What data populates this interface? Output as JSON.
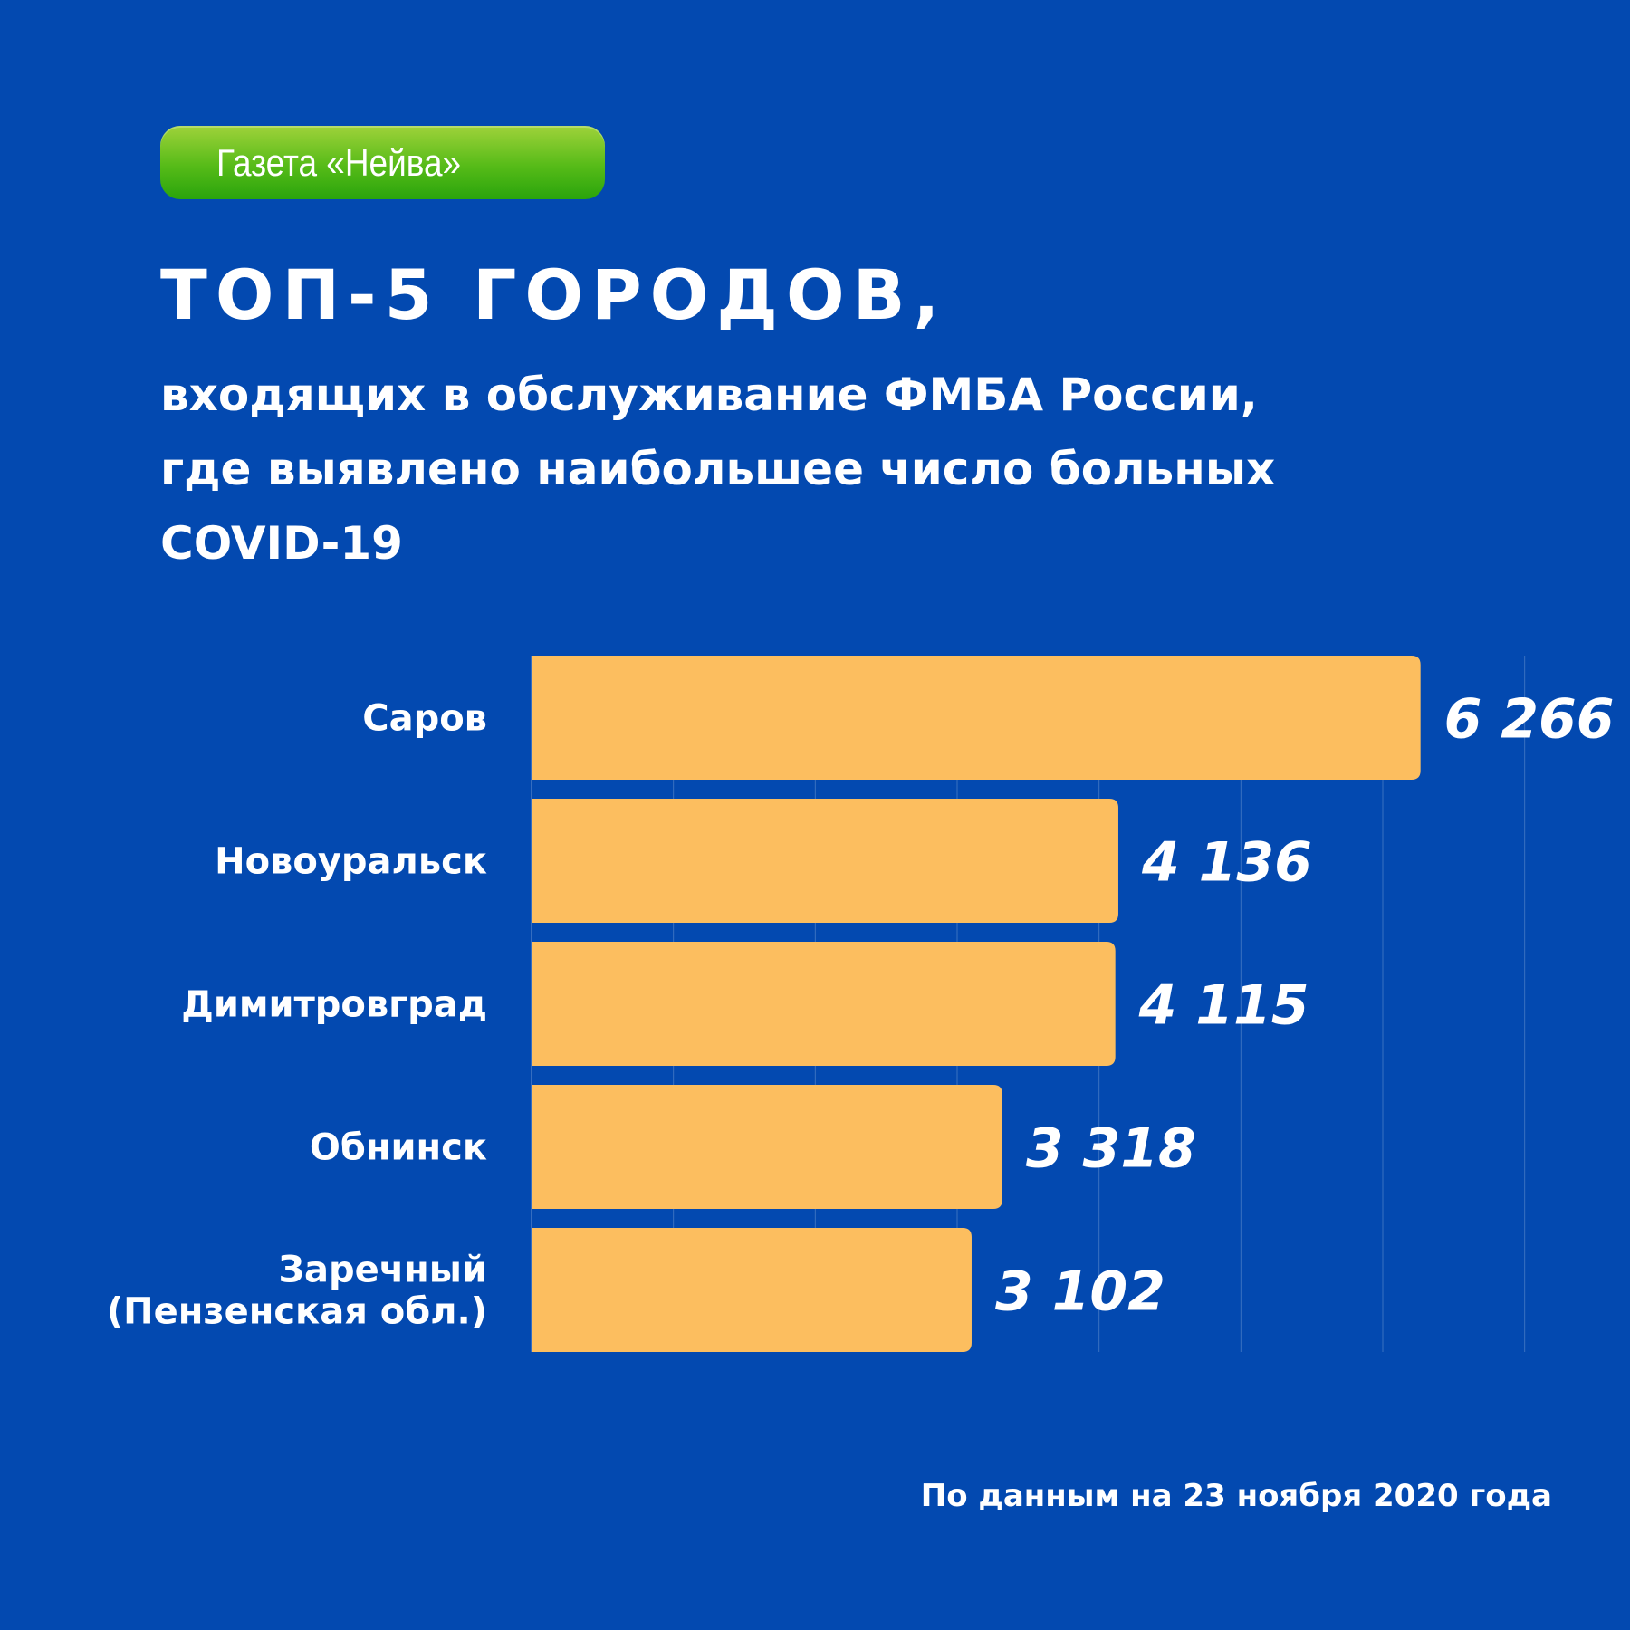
{
  "badge": {
    "text": "Газета «Нейва»"
  },
  "title": "ТОП-5 ГОРОДОВ,",
  "subtitle": [
    "входящих в обслуживание ФМБА России,",
    "где выявлено наибольшее число больных",
    "COVID-19"
  ],
  "footnote": "По данным на 23 ноября 2020 года",
  "colors": {
    "background": "#0349b0",
    "bar": "#fcbe5f",
    "badge": "#56bb18",
    "text": "#ffffff"
  },
  "chart_data": {
    "type": "bar",
    "orientation": "horizontal",
    "categories": [
      [
        "Саров"
      ],
      [
        "Новоуральск"
      ],
      [
        "Димитровград"
      ],
      [
        "Обнинск"
      ],
      [
        "Заречный",
        "(Пензенская обл.)"
      ]
    ],
    "values": [
      6266,
      4136,
      4115,
      3318,
      3102
    ],
    "value_labels": [
      "6 266",
      "4 136",
      "4 115",
      "3 318",
      "3 102"
    ],
    "xlim": [
      0,
      7500
    ],
    "grid": true
  }
}
